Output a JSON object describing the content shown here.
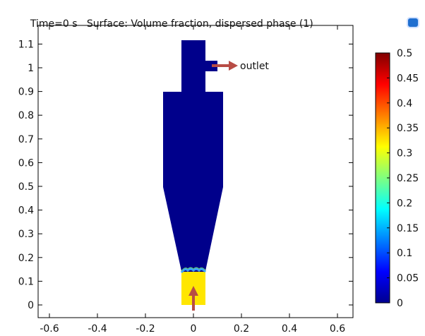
{
  "header": {
    "time_label": "Time=0 s",
    "surface_label": "Surface: Volume fraction, dispersed phase (1)"
  },
  "annotations": {
    "outlet": "outlet"
  },
  "colors": {
    "domain": "#00008b",
    "inlet_fill": "#ffe600",
    "arrow": "#b84c45"
  },
  "icons": {
    "top_right": "comsol-app-icon"
  },
  "chart_data": {
    "type": "heatmap",
    "x_ticks": [
      "-0.6",
      "-0.4",
      "-0.2",
      "0",
      "0.2",
      "0.4",
      "0.6"
    ],
    "y_ticks": [
      "0",
      "0.1",
      "0.2",
      "0.3",
      "0.4",
      "0.5",
      "0.6",
      "0.7",
      "0.8",
      "0.9",
      "1",
      "1.1"
    ],
    "xlim": [
      -0.7,
      0.67
    ],
    "ylim": [
      -0.05,
      1.14
    ],
    "colorbar": {
      "ticks": [
        "0",
        "0.05",
        "0.1",
        "0.15",
        "0.2",
        "0.25",
        "0.3",
        "0.35",
        "0.4",
        "0.45",
        "0.5"
      ],
      "range": [
        0,
        0.5
      ],
      "colormap": "jet"
    },
    "domain_value": 0,
    "inlet_value": 0.3,
    "interface_y": 0.15
  }
}
